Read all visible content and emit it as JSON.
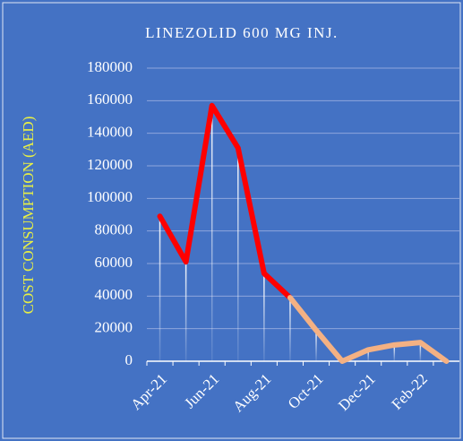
{
  "chart_data": {
    "type": "line",
    "title": "LINEZOLID 600 MG INJ.",
    "y_label": "COST CONSUMPTION (AED)",
    "categories": [
      "Apr-21",
      null,
      "Jun-21",
      null,
      "Aug-21",
      null,
      "Oct-21",
      null,
      "Dec-21",
      null,
      "Feb-22",
      null
    ],
    "series": [
      {
        "color": "#ff0000",
        "values": [
          89000,
          61000,
          157000,
          131000,
          54000,
          39000,
          null,
          null,
          null,
          null,
          null,
          null
        ]
      },
      {
        "color": "#f4b183",
        "values": [
          null,
          null,
          null,
          null,
          null,
          39000,
          19000,
          0,
          7000,
          10000,
          11500,
          0
        ]
      }
    ],
    "ylim": [
      0,
      180000
    ],
    "yticks": [
      0,
      20000,
      40000,
      60000,
      80000,
      100000,
      120000,
      140000,
      160000,
      180000
    ],
    "grid": true,
    "background": "#4472c4"
  }
}
